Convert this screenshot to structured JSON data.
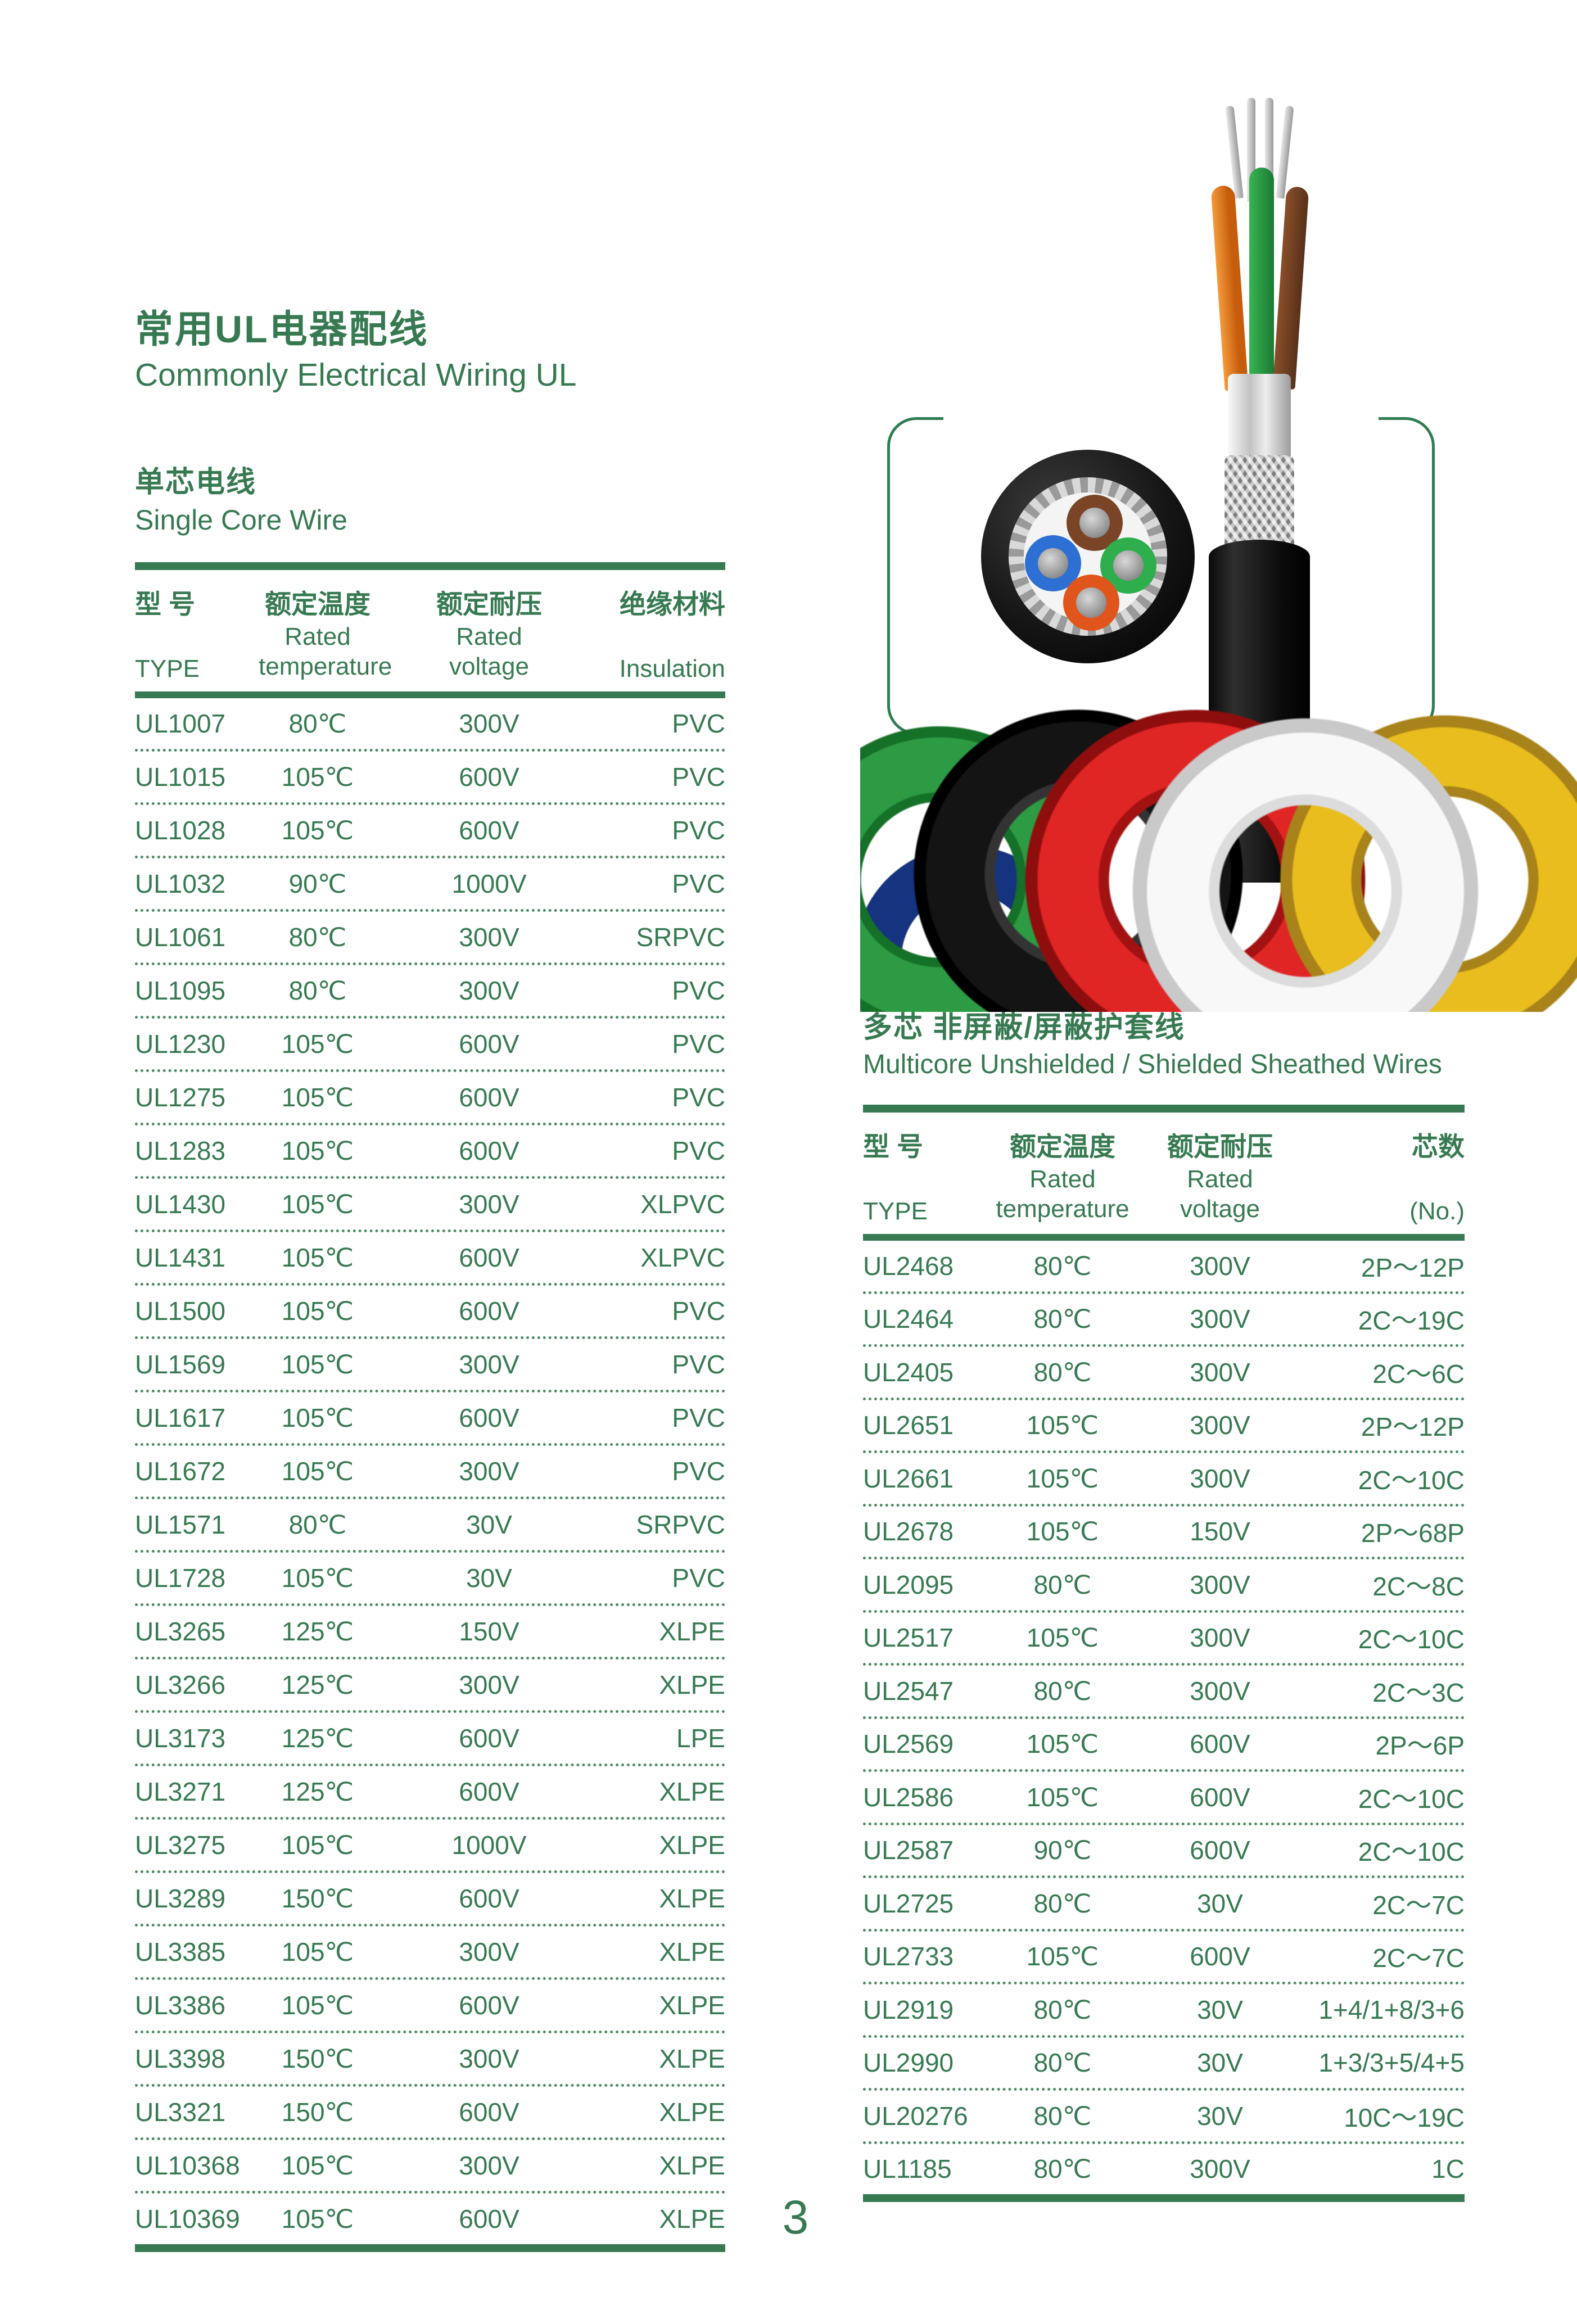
{
  "colors": {
    "accent": "#377a52",
    "coil_green": "#2c9b43",
    "coil_black": "#141414",
    "coil_red": "#e02525",
    "coil_white": "#f8f8f8",
    "coil_yellow": "#e8bd1d",
    "core_brown": "#7a4526",
    "core_blue": "#2d6fd2",
    "core_green": "#2fae4e",
    "core_orange": "#e0551c"
  },
  "page": {
    "title_zh": "常用UL电器配线",
    "title_en": "Commonly Electrical Wiring UL",
    "page_number": "3"
  },
  "single_core": {
    "heading_zh": "单芯电线",
    "heading_en": "Single Core Wire",
    "table": {
      "headers": {
        "type_zh": "型 号",
        "type_en": "TYPE",
        "temp_zh": "额定温度",
        "temp_line1": "Rated",
        "temp_line2": "temperature",
        "volt_zh": "额定耐压",
        "volt_line1": "Rated",
        "volt_line2": "voltage",
        "ins_zh": "绝缘材料",
        "ins_en": "Insulation"
      },
      "rows": [
        {
          "type": "UL1007",
          "temp": "80℃",
          "volt": "300V",
          "ins": "PVC"
        },
        {
          "type": "UL1015",
          "temp": "105℃",
          "volt": "600V",
          "ins": "PVC"
        },
        {
          "type": "UL1028",
          "temp": "105℃",
          "volt": "600V",
          "ins": "PVC"
        },
        {
          "type": "UL1032",
          "temp": "90℃",
          "volt": "1000V",
          "ins": "PVC"
        },
        {
          "type": "UL1061",
          "temp": "80℃",
          "volt": "300V",
          "ins": "SRPVC"
        },
        {
          "type": "UL1095",
          "temp": "80℃",
          "volt": "300V",
          "ins": "PVC"
        },
        {
          "type": "UL1230",
          "temp": "105℃",
          "volt": "600V",
          "ins": "PVC"
        },
        {
          "type": "UL1275",
          "temp": "105℃",
          "volt": "600V",
          "ins": "PVC"
        },
        {
          "type": "UL1283",
          "temp": "105℃",
          "volt": "600V",
          "ins": "PVC"
        },
        {
          "type": "UL1430",
          "temp": "105℃",
          "volt": "300V",
          "ins": "XLPVC"
        },
        {
          "type": "UL1431",
          "temp": "105℃",
          "volt": "600V",
          "ins": "XLPVC"
        },
        {
          "type": "UL1500",
          "temp": "105℃",
          "volt": "600V",
          "ins": "PVC"
        },
        {
          "type": "UL1569",
          "temp": "105℃",
          "volt": "300V",
          "ins": "PVC"
        },
        {
          "type": "UL1617",
          "temp": "105℃",
          "volt": "600V",
          "ins": "PVC"
        },
        {
          "type": "UL1672",
          "temp": "105℃",
          "volt": "300V",
          "ins": "PVC"
        },
        {
          "type": "UL1571",
          "temp": "80℃",
          "volt": "30V",
          "ins": "SRPVC"
        },
        {
          "type": "UL1728",
          "temp": "105℃",
          "volt": "30V",
          "ins": "PVC"
        },
        {
          "type": "UL3265",
          "temp": "125℃",
          "volt": "150V",
          "ins": "XLPE"
        },
        {
          "type": "UL3266",
          "temp": "125℃",
          "volt": "300V",
          "ins": "XLPE"
        },
        {
          "type": "UL3173",
          "temp": "125℃",
          "volt": "600V",
          "ins": "LPE"
        },
        {
          "type": "UL3271",
          "temp": "125℃",
          "volt": "600V",
          "ins": "XLPE"
        },
        {
          "type": "UL3275",
          "temp": "105℃",
          "volt": "1000V",
          "ins": "XLPE"
        },
        {
          "type": "UL3289",
          "temp": "150℃",
          "volt": "600V",
          "ins": "XLPE"
        },
        {
          "type": "UL3385",
          "temp": "105℃",
          "volt": "300V",
          "ins": "XLPE"
        },
        {
          "type": "UL3386",
          "temp": "105℃",
          "volt": "600V",
          "ins": "XLPE"
        },
        {
          "type": "UL3398",
          "temp": "150℃",
          "volt": "300V",
          "ins": "XLPE"
        },
        {
          "type": "UL3321",
          "temp": "150℃",
          "volt": "600V",
          "ins": "XLPE"
        },
        {
          "type": "UL10368",
          "temp": "105℃",
          "volt": "300V",
          "ins": "XLPE"
        },
        {
          "type": "UL10369",
          "temp": "105℃",
          "volt": "600V",
          "ins": "XLPE"
        }
      ]
    }
  },
  "multicore": {
    "heading_zh": "多芯 非屏蔽/屏蔽护套线",
    "heading_en": "Multicore Unshielded / Shielded Sheathed Wires",
    "table": {
      "headers": {
        "type_zh": "型 号",
        "type_en": "TYPE",
        "temp_zh": "额定温度",
        "temp_line1": "Rated",
        "temp_line2": "temperature",
        "volt_zh": "额定耐压",
        "volt_line1": "Rated",
        "volt_line2": "voltage",
        "cores_zh": "芯数",
        "cores_en": "(No.)"
      },
      "rows": [
        {
          "type": "UL2468",
          "temp": "80℃",
          "volt": "300V",
          "cores": "2P～12P"
        },
        {
          "type": "UL2464",
          "temp": "80℃",
          "volt": "300V",
          "cores": "2C～19C"
        },
        {
          "type": "UL2405",
          "temp": "80℃",
          "volt": "300V",
          "cores": "2C～6C"
        },
        {
          "type": "UL2651",
          "temp": "105℃",
          "volt": "300V",
          "cores": "2P～12P"
        },
        {
          "type": "UL2661",
          "temp": "105℃",
          "volt": "300V",
          "cores": "2C～10C"
        },
        {
          "type": "UL2678",
          "temp": "105℃",
          "volt": "150V",
          "cores": "2P～68P"
        },
        {
          "type": "UL2095",
          "temp": "80℃",
          "volt": "300V",
          "cores": "2C～8C"
        },
        {
          "type": "UL2517",
          "temp": "105℃",
          "volt": "300V",
          "cores": "2C～10C"
        },
        {
          "type": "UL2547",
          "temp": "80℃",
          "volt": "300V",
          "cores": "2C～3C"
        },
        {
          "type": "UL2569",
          "temp": "105℃",
          "volt": "600V",
          "cores": "2P～6P"
        },
        {
          "type": "UL2586",
          "temp": "105℃",
          "volt": "600V",
          "cores": "2C～10C"
        },
        {
          "type": "UL2587",
          "temp": "90℃",
          "volt": "600V",
          "cores": "2C～10C"
        },
        {
          "type": "UL2725",
          "temp": "80℃",
          "volt": "30V",
          "cores": "2C～7C"
        },
        {
          "type": "UL2733",
          "temp": "105℃",
          "volt": "600V",
          "cores": "2C～7C"
        },
        {
          "type": "UL2919",
          "temp": "80℃",
          "volt": "30V",
          "cores": "1+4/1+8/3+6"
        },
        {
          "type": "UL2990",
          "temp": "80℃",
          "volt": "30V",
          "cores": "1+3/3+5/4+5"
        },
        {
          "type": "UL20276",
          "temp": "80℃",
          "volt": "30V",
          "cores": "10C～19C"
        },
        {
          "type": "UL1185",
          "temp": "80℃",
          "volt": "300V",
          "cores": "1C"
        }
      ]
    }
  }
}
